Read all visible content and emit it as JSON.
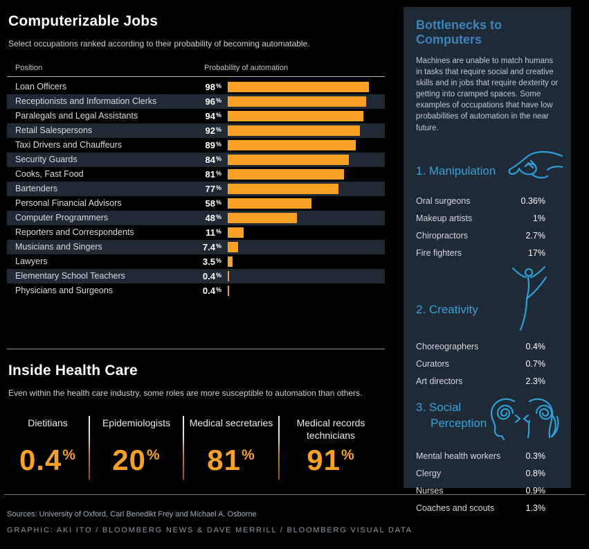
{
  "page": {
    "title": "Computerizable Jobs",
    "subtitle": "Select occupations ranked according to their probability of becoming automatable."
  },
  "table": {
    "col_position": "Position",
    "col_probability": "Probability of automation"
  },
  "chart_data": [
    {
      "type": "bar",
      "orientation": "horizontal",
      "title": "Computerizable Jobs",
      "xlabel": "Probability of automation",
      "unit": "%",
      "xlim": [
        0,
        100
      ],
      "bar_color": "#f9a125",
      "categories": [
        "Loan Officers",
        "Receptionists and Information Clerks",
        "Paralegals and Legal Assistants",
        "Retail Salespersons",
        "Taxi Drivers and Chauffeurs",
        "Security Guards",
        "Cooks, Fast Food",
        "Bartenders",
        "Personal Financial Advisors",
        "Computer Programmers",
        "Reporters and Correspondents",
        "Musicians and Singers",
        "Lawyers",
        "Elementary School Teachers",
        "Physicians and Surgeons"
      ],
      "values": [
        98,
        96,
        94,
        92,
        89,
        84,
        81,
        77,
        58,
        48,
        11,
        7.4,
        3.5,
        0.4,
        0.4
      ],
      "value_labels": [
        "98%",
        "96%",
        "94%",
        "92%",
        "89%",
        "84%",
        "81%",
        "77%",
        "58%",
        "48%",
        "11%",
        "7.4%",
        "3.5%",
        "0.4%",
        "0.4%"
      ]
    },
    {
      "type": "table",
      "title": "Inside Health Care",
      "unit": "%",
      "rows": [
        [
          "Dietitians",
          0.4
        ],
        [
          "Epidemiologists",
          20
        ],
        [
          "Medical secretaries",
          81
        ],
        [
          "Medical records technicians",
          91
        ]
      ]
    },
    {
      "type": "table",
      "title": "1. Manipulation",
      "unit": "%",
      "rows": [
        [
          "Oral surgeons",
          0.36
        ],
        [
          "Makeup artists",
          1
        ],
        [
          "Chiropractors",
          2.7
        ],
        [
          "Fire fighters",
          17
        ]
      ]
    },
    {
      "type": "table",
      "title": "2. Creativity",
      "unit": "%",
      "rows": [
        [
          "Choreographers",
          0.4
        ],
        [
          "Curators",
          0.7
        ],
        [
          "Art directors",
          2.3
        ]
      ]
    },
    {
      "type": "table",
      "title": "3. Social Perception",
      "unit": "%",
      "rows": [
        [
          "Mental health workers",
          0.3
        ],
        [
          "Clergy",
          0.8
        ],
        [
          "Nurses",
          0.9
        ],
        [
          "Coaches and scouts",
          1.3
        ]
      ]
    }
  ],
  "health": {
    "title": "Inside Health Care",
    "subtitle": "Even within the health care industry, some roles are more susceptible to automation than others.",
    "stats": [
      {
        "label": "Dietitians",
        "value": "0.4%"
      },
      {
        "label": "Epidemiologists",
        "value": "20%"
      },
      {
        "label": "Medical secretaries",
        "value": "81%"
      },
      {
        "label": "Medical records technicians",
        "value": "91%"
      }
    ]
  },
  "sidebar": {
    "title": "Bottlenecks to Computers",
    "intro": "Machines are unable to match humans in tasks that require social and creative skills and in jobs that require dexterity or getting into cramped spaces. Some examples of occupations that have low probabilities of automation in the near future.",
    "sections": [
      {
        "heading": "1. Manipulation",
        "icon": "hand-icon",
        "items": [
          [
            "Oral surgeons",
            "0.36%"
          ],
          [
            "Makeup artists",
            "1%"
          ],
          [
            "Chiropractors",
            "2.7%"
          ],
          [
            "Fire fighters",
            "17%"
          ]
        ]
      },
      {
        "heading": "2. Creativity",
        "icon": "dancer-icon",
        "items": [
          [
            "Choreographers",
            "0.4%"
          ],
          [
            "Curators",
            "0.7%"
          ],
          [
            "Art directors",
            "2.3%"
          ]
        ]
      },
      {
        "heading": "3. Social Perception",
        "icon": "two-heads-icon",
        "items": [
          [
            "Mental health workers",
            "0.3%"
          ],
          [
            "Clergy",
            "0.8%"
          ],
          [
            "Nurses",
            "0.9%"
          ],
          [
            "Coaches and scouts",
            "1.3%"
          ]
        ]
      }
    ]
  },
  "footer": {
    "sources": "Sources: University of Oxford, Carl Benedikt Frey and Michael A. Osborne",
    "credit": "GRAPHIC: AKI ITO / BLOOMBERG NEWS & DAVE MERRILL / BLOOMBERG VISUAL DATA"
  },
  "colors": {
    "bar_orange": "#f9a125",
    "sidebar_bg": "#1e2a36",
    "row_alt_bg": "#1f2a35",
    "blue_title": "#3d84b8",
    "blue_accent": "#39a2d7"
  }
}
